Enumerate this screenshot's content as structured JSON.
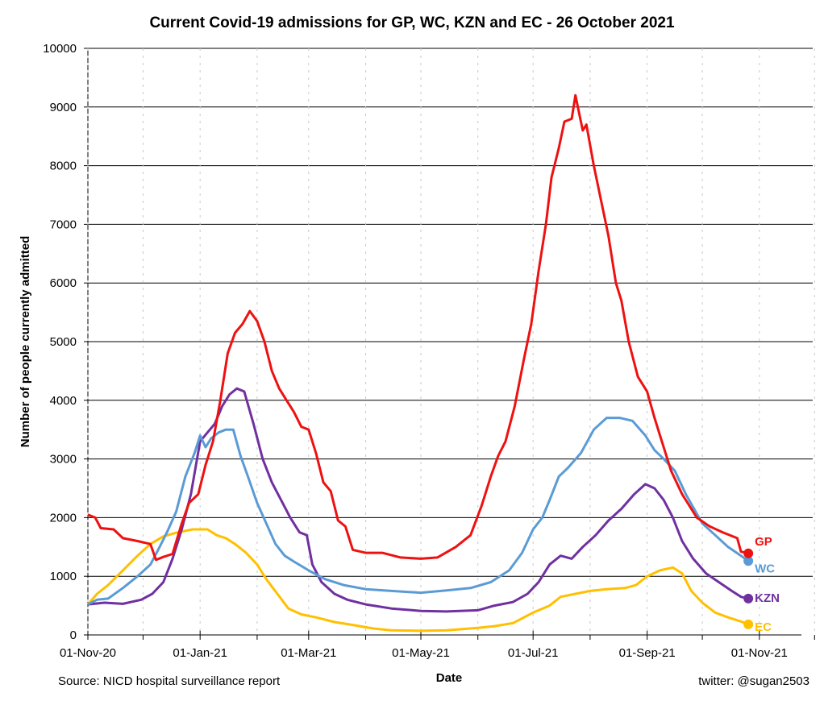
{
  "chart_data": {
    "type": "line",
    "title": "Current Covid-19 admissions for GP, WC, KZN and EC - 26 October 2021",
    "xlabel": "Date",
    "ylabel": "Number of people currently admitted",
    "ylim": [
      0,
      10000
    ],
    "yticks": [
      0,
      1000,
      2000,
      3000,
      4000,
      5000,
      6000,
      7000,
      8000,
      9000,
      10000
    ],
    "xlim": [
      "2020-11-01",
      "2021-11-30"
    ],
    "xticks": [
      {
        "date": "2020-11-01",
        "label": "01-Nov-20"
      },
      {
        "date": "2021-01-01",
        "label": "01-Jan-21"
      },
      {
        "date": "2021-03-01",
        "label": "01-Mar-21"
      },
      {
        "date": "2021-05-01",
        "label": "01-May-21"
      },
      {
        "date": "2021-07-01",
        "label": "01-Jul-21"
      },
      {
        "date": "2021-09-01",
        "label": "01-Sep-21"
      },
      {
        "date": "2021-11-01",
        "label": "01-Nov-21"
      }
    ],
    "minor_xticks": [
      "2020-12-01",
      "2021-02-01",
      "2021-04-01",
      "2021-06-01",
      "2021-08-01",
      "2021-10-01",
      "2021-12-01"
    ],
    "grid": "horizontal",
    "colors": {
      "GP": "#ee1111",
      "WC": "#5b9bd5",
      "KZN": "#7030a0",
      "EC": "#ffc000"
    },
    "series": [
      {
        "name": "GP",
        "color": "#ee1111",
        "points": [
          [
            "2020-11-01",
            2050
          ],
          [
            "2020-11-05",
            2000
          ],
          [
            "2020-11-08",
            1820
          ],
          [
            "2020-11-15",
            1800
          ],
          [
            "2020-11-20",
            1650
          ],
          [
            "2020-11-28",
            1600
          ],
          [
            "2020-12-05",
            1550
          ],
          [
            "2020-12-08",
            1280
          ],
          [
            "2020-12-12",
            1330
          ],
          [
            "2020-12-17",
            1380
          ],
          [
            "2020-12-22",
            1900
          ],
          [
            "2020-12-26",
            2250
          ],
          [
            "2020-12-31",
            2400
          ],
          [
            "2021-01-04",
            2900
          ],
          [
            "2021-01-08",
            3300
          ],
          [
            "2021-01-12",
            4000
          ],
          [
            "2021-01-16",
            4800
          ],
          [
            "2021-01-20",
            5150
          ],
          [
            "2021-01-24",
            5300
          ],
          [
            "2021-01-28",
            5520
          ],
          [
            "2021-02-01",
            5350
          ],
          [
            "2021-02-05",
            5000
          ],
          [
            "2021-02-09",
            4500
          ],
          [
            "2021-02-13",
            4200
          ],
          [
            "2021-02-17",
            4000
          ],
          [
            "2021-02-21",
            3800
          ],
          [
            "2021-02-25",
            3550
          ],
          [
            "2021-03-01",
            3500
          ],
          [
            "2021-03-05",
            3100
          ],
          [
            "2021-03-09",
            2600
          ],
          [
            "2021-03-13",
            2450
          ],
          [
            "2021-03-17",
            1950
          ],
          [
            "2021-03-21",
            1850
          ],
          [
            "2021-03-25",
            1450
          ],
          [
            "2021-04-01",
            1400
          ],
          [
            "2021-04-10",
            1400
          ],
          [
            "2021-04-20",
            1320
          ],
          [
            "2021-05-01",
            1300
          ],
          [
            "2021-05-10",
            1320
          ],
          [
            "2021-05-20",
            1500
          ],
          [
            "2021-05-28",
            1700
          ],
          [
            "2021-06-03",
            2200
          ],
          [
            "2021-06-08",
            2700
          ],
          [
            "2021-06-12",
            3050
          ],
          [
            "2021-06-16",
            3300
          ],
          [
            "2021-06-21",
            3900
          ],
          [
            "2021-06-26",
            4700
          ],
          [
            "2021-06-30",
            5300
          ],
          [
            "2021-07-04",
            6200
          ],
          [
            "2021-07-08",
            7000
          ],
          [
            "2021-07-11",
            7800
          ],
          [
            "2021-07-15",
            8300
          ],
          [
            "2021-07-18",
            8750
          ],
          [
            "2021-07-22",
            8800
          ],
          [
            "2021-07-24",
            9200
          ],
          [
            "2021-07-26",
            8900
          ],
          [
            "2021-07-28",
            8600
          ],
          [
            "2021-07-30",
            8700
          ],
          [
            "2021-08-03",
            8000
          ],
          [
            "2021-08-07",
            7400
          ],
          [
            "2021-08-11",
            6800
          ],
          [
            "2021-08-15",
            6000
          ],
          [
            "2021-08-18",
            5700
          ],
          [
            "2021-08-22",
            5000
          ],
          [
            "2021-08-27",
            4400
          ],
          [
            "2021-09-01",
            4150
          ],
          [
            "2021-09-05",
            3700
          ],
          [
            "2021-09-09",
            3300
          ],
          [
            "2021-09-14",
            2800
          ],
          [
            "2021-09-20",
            2400
          ],
          [
            "2021-09-28",
            2000
          ],
          [
            "2021-10-05",
            1850
          ],
          [
            "2021-10-12",
            1750
          ],
          [
            "2021-10-20",
            1650
          ],
          [
            "2021-10-22",
            1420
          ],
          [
            "2021-10-26",
            1390
          ]
        ]
      },
      {
        "name": "WC",
        "color": "#5b9bd5",
        "points": [
          [
            "2020-11-01",
            520
          ],
          [
            "2020-11-06",
            600
          ],
          [
            "2020-11-12",
            620
          ],
          [
            "2020-11-20",
            800
          ],
          [
            "2020-11-28",
            1000
          ],
          [
            "2020-12-05",
            1200
          ],
          [
            "2020-12-10",
            1500
          ],
          [
            "2020-12-14",
            1750
          ],
          [
            "2020-12-19",
            2100
          ],
          [
            "2020-12-24",
            2700
          ],
          [
            "2020-12-29",
            3100
          ],
          [
            "2021-01-01",
            3400
          ],
          [
            "2021-01-04",
            3200
          ],
          [
            "2021-01-07",
            3350
          ],
          [
            "2021-01-11",
            3450
          ],
          [
            "2021-01-15",
            3500
          ],
          [
            "2021-01-19",
            3500
          ],
          [
            "2021-01-23",
            3050
          ],
          [
            "2021-01-27",
            2700
          ],
          [
            "2021-02-01",
            2250
          ],
          [
            "2021-02-06",
            1900
          ],
          [
            "2021-02-11",
            1550
          ],
          [
            "2021-02-16",
            1350
          ],
          [
            "2021-02-21",
            1250
          ],
          [
            "2021-03-01",
            1100
          ],
          [
            "2021-03-10",
            950
          ],
          [
            "2021-03-20",
            850
          ],
          [
            "2021-04-01",
            780
          ],
          [
            "2021-04-15",
            750
          ],
          [
            "2021-05-01",
            720
          ],
          [
            "2021-05-15",
            760
          ],
          [
            "2021-05-28",
            800
          ],
          [
            "2021-06-08",
            900
          ],
          [
            "2021-06-18",
            1100
          ],
          [
            "2021-06-25",
            1400
          ],
          [
            "2021-07-01",
            1800
          ],
          [
            "2021-07-06",
            2000
          ],
          [
            "2021-07-10",
            2300
          ],
          [
            "2021-07-15",
            2700
          ],
          [
            "2021-07-20",
            2850
          ],
          [
            "2021-07-27",
            3100
          ],
          [
            "2021-08-03",
            3500
          ],
          [
            "2021-08-10",
            3700
          ],
          [
            "2021-08-17",
            3700
          ],
          [
            "2021-08-24",
            3650
          ],
          [
            "2021-08-31",
            3400
          ],
          [
            "2021-09-05",
            3150
          ],
          [
            "2021-09-10",
            3000
          ],
          [
            "2021-09-16",
            2800
          ],
          [
            "2021-09-22",
            2400
          ],
          [
            "2021-10-01",
            1900
          ],
          [
            "2021-10-08",
            1700
          ],
          [
            "2021-10-15",
            1500
          ],
          [
            "2021-10-22",
            1350
          ],
          [
            "2021-10-26",
            1260
          ]
        ]
      },
      {
        "name": "KZN",
        "color": "#7030a0",
        "points": [
          [
            "2020-11-01",
            520
          ],
          [
            "2020-11-10",
            550
          ],
          [
            "2020-11-20",
            530
          ],
          [
            "2020-11-30",
            600
          ],
          [
            "2020-12-06",
            700
          ],
          [
            "2020-12-12",
            900
          ],
          [
            "2020-12-17",
            1300
          ],
          [
            "2020-12-22",
            1800
          ],
          [
            "2020-12-27",
            2400
          ],
          [
            "2021-01-01",
            3300
          ],
          [
            "2021-01-05",
            3450
          ],
          [
            "2021-01-09",
            3600
          ],
          [
            "2021-01-13",
            3900
          ],
          [
            "2021-01-17",
            4100
          ],
          [
            "2021-01-21",
            4200
          ],
          [
            "2021-01-25",
            4150
          ],
          [
            "2021-01-30",
            3600
          ],
          [
            "2021-02-04",
            3000
          ],
          [
            "2021-02-09",
            2600
          ],
          [
            "2021-02-14",
            2300
          ],
          [
            "2021-02-19",
            2000
          ],
          [
            "2021-02-24",
            1750
          ],
          [
            "2021-02-28",
            1700
          ],
          [
            "2021-03-03",
            1200
          ],
          [
            "2021-03-08",
            900
          ],
          [
            "2021-03-15",
            700
          ],
          [
            "2021-03-22",
            600
          ],
          [
            "2021-04-01",
            520
          ],
          [
            "2021-04-15",
            450
          ],
          [
            "2021-05-01",
            410
          ],
          [
            "2021-05-15",
            400
          ],
          [
            "2021-06-01",
            420
          ],
          [
            "2021-06-10",
            500
          ],
          [
            "2021-06-20",
            560
          ],
          [
            "2021-06-28",
            700
          ],
          [
            "2021-07-04",
            900
          ],
          [
            "2021-07-10",
            1200
          ],
          [
            "2021-07-16",
            1350
          ],
          [
            "2021-07-22",
            1300
          ],
          [
            "2021-07-28",
            1500
          ],
          [
            "2021-08-04",
            1700
          ],
          [
            "2021-08-11",
            1950
          ],
          [
            "2021-08-18",
            2150
          ],
          [
            "2021-08-25",
            2400
          ],
          [
            "2021-08-31",
            2570
          ],
          [
            "2021-09-05",
            2500
          ],
          [
            "2021-09-10",
            2300
          ],
          [
            "2021-09-15",
            2000
          ],
          [
            "2021-09-20",
            1600
          ],
          [
            "2021-09-26",
            1300
          ],
          [
            "2021-10-03",
            1050
          ],
          [
            "2021-10-10",
            900
          ],
          [
            "2021-10-17",
            750
          ],
          [
            "2021-10-22",
            650
          ],
          [
            "2021-10-26",
            620
          ]
        ]
      },
      {
        "name": "EC",
        "color": "#ffc000",
        "points": [
          [
            "2020-11-01",
            520
          ],
          [
            "2020-11-06",
            700
          ],
          [
            "2020-11-12",
            850
          ],
          [
            "2020-11-20",
            1100
          ],
          [
            "2020-11-28",
            1350
          ],
          [
            "2020-12-05",
            1550
          ],
          [
            "2020-12-12",
            1680
          ],
          [
            "2020-12-20",
            1750
          ],
          [
            "2020-12-28",
            1800
          ],
          [
            "2021-01-05",
            1800
          ],
          [
            "2021-01-10",
            1700
          ],
          [
            "2021-01-15",
            1650
          ],
          [
            "2021-01-20",
            1550
          ],
          [
            "2021-01-26",
            1400
          ],
          [
            "2021-02-01",
            1200
          ],
          [
            "2021-02-06",
            950
          ],
          [
            "2021-02-12",
            700
          ],
          [
            "2021-02-18",
            450
          ],
          [
            "2021-02-25",
            350
          ],
          [
            "2021-03-05",
            300
          ],
          [
            "2021-03-15",
            220
          ],
          [
            "2021-03-25",
            170
          ],
          [
            "2021-04-05",
            110
          ],
          [
            "2021-04-15",
            80
          ],
          [
            "2021-05-01",
            70
          ],
          [
            "2021-05-15",
            80
          ],
          [
            "2021-06-01",
            120
          ],
          [
            "2021-06-10",
            150
          ],
          [
            "2021-06-20",
            200
          ],
          [
            "2021-07-01",
            380
          ],
          [
            "2021-07-10",
            500
          ],
          [
            "2021-07-16",
            650
          ],
          [
            "2021-07-24",
            700
          ],
          [
            "2021-08-01",
            750
          ],
          [
            "2021-08-10",
            780
          ],
          [
            "2021-08-20",
            800
          ],
          [
            "2021-08-26",
            850
          ],
          [
            "2021-09-01",
            1000
          ],
          [
            "2021-09-08",
            1100
          ],
          [
            "2021-09-15",
            1150
          ],
          [
            "2021-09-20",
            1050
          ],
          [
            "2021-09-25",
            750
          ],
          [
            "2021-10-01",
            550
          ],
          [
            "2021-10-08",
            380
          ],
          [
            "2021-10-15",
            300
          ],
          [
            "2021-10-22",
            230
          ],
          [
            "2021-10-26",
            180
          ]
        ]
      }
    ],
    "end_labels": [
      "GP",
      "WC",
      "KZN",
      "EC"
    ]
  },
  "footer": {
    "source": "Source: NICD hospital surveillance report",
    "credit": "twitter: @sugan2503"
  }
}
